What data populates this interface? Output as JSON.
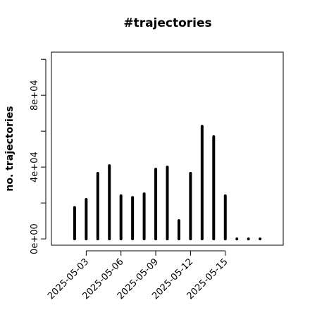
{
  "chart_data": {
    "type": "histogram-lines",
    "title": "#trajectories",
    "y_label": "no. trajectories",
    "x": [
      "2025-05-02",
      "2025-05-03",
      "2025-05-04",
      "2025-05-05",
      "2025-05-06",
      "2025-05-07",
      "2025-05-08",
      "2025-05-09",
      "2025-05-10",
      "2025-05-11",
      "2025-05-12",
      "2025-05-13",
      "2025-05-14",
      "2025-05-15",
      "2025-05-16",
      "2025-05-17",
      "2025-05-18"
    ],
    "values": [
      17500,
      22000,
      36500,
      40800,
      24000,
      23100,
      25100,
      38800,
      40000,
      10200,
      36500,
      62700,
      56900,
      24000,
      0,
      0,
      0
    ],
    "color": "#000000",
    "xlim": [
      "2025-04-30",
      "2025-05-20"
    ],
    "xticks": [
      "2025-05-03",
      "2025-05-06",
      "2025-05-09",
      "2025-05-12",
      "2025-05-15"
    ],
    "ylim": [
      -3500,
      104000
    ],
    "yticks": [
      {
        "value": 0,
        "label": "0e+00"
      },
      {
        "value": 20000,
        "label": null
      },
      {
        "value": 40000,
        "label": "4e+04"
      },
      {
        "value": 60000,
        "label": null
      },
      {
        "value": 80000,
        "label": "8e+04"
      },
      {
        "value": 100000,
        "label": null
      }
    ]
  }
}
